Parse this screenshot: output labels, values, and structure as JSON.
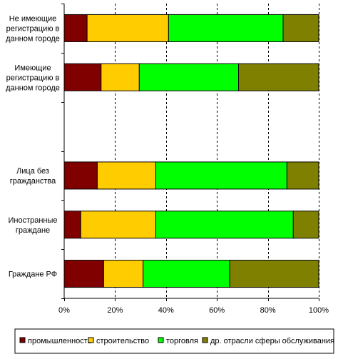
{
  "chart_data": {
    "type": "bar",
    "orientation": "horizontal",
    "stacked": "percent",
    "title": "",
    "xlabel": "",
    "ylabel": "",
    "xlim": [
      0,
      100
    ],
    "grid": "vertical dashed",
    "legend_position": "bottom",
    "categories": [
      "Не имеющие регистрацию в данном городе",
      "Имеющие регистрацию в данном городе",
      "",
      "Лица без гражданства",
      "Иностранные граждане",
      "Граждане РФ"
    ],
    "category_lines": [
      [
        "Не имеющие",
        "регистрацию в",
        "данном городе"
      ],
      [
        "Имеющие",
        "регистрацию в",
        "данном городе"
      ],
      [],
      [
        "Лица без",
        "гражданства"
      ],
      [
        "Иностранные",
        "граждане"
      ],
      [
        "Граждане РФ"
      ]
    ],
    "ticks": [
      "0%",
      "20%",
      "40%",
      "60%",
      "80%",
      "100%"
    ],
    "series": [
      {
        "name": "промышленность",
        "color": "#800000",
        "values": [
          9,
          14.5,
          null,
          13,
          6.5,
          15.5
        ]
      },
      {
        "name": "строительство",
        "color": "#FFCC00",
        "values": [
          32,
          15,
          null,
          23,
          29.5,
          15.5
        ]
      },
      {
        "name": "торговля",
        "color": "#00FF00",
        "values": [
          45,
          39,
          null,
          51.5,
          54,
          34
        ]
      },
      {
        "name": "др. отрасли сферы обслуживания",
        "color": "#808000",
        "values": [
          14,
          31.5,
          null,
          12.5,
          10,
          35
        ]
      }
    ]
  }
}
